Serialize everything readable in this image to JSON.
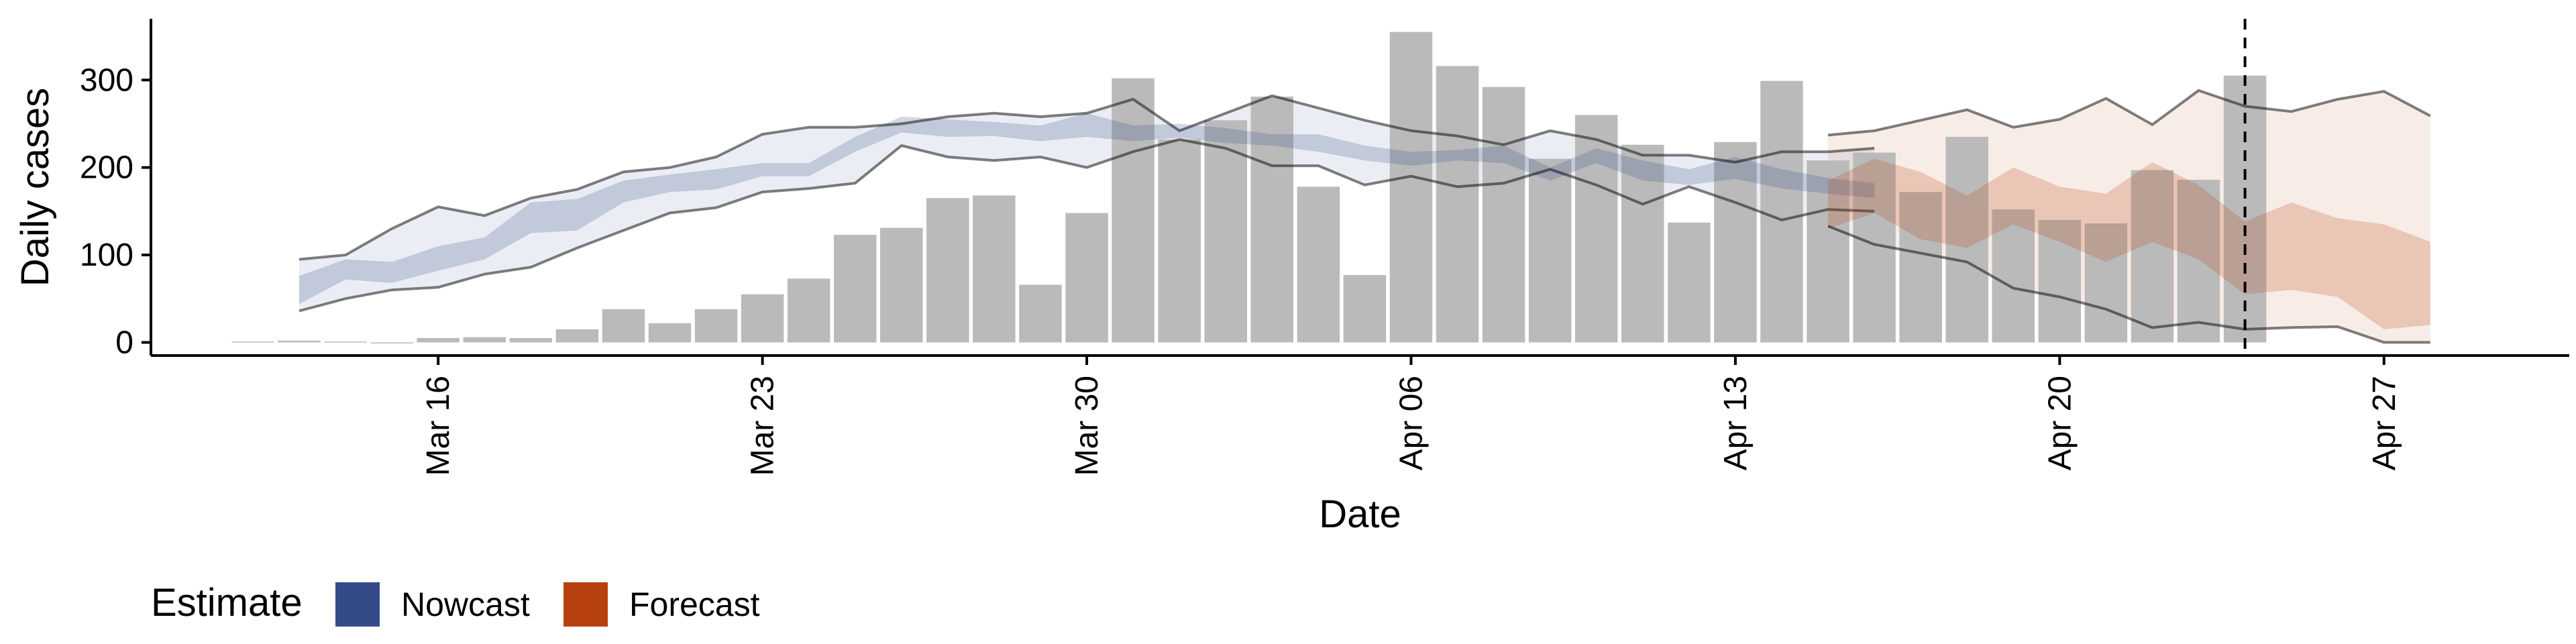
{
  "chart_data": {
    "type": "bar",
    "title": "",
    "xlabel": "Date",
    "ylabel": "Daily cases",
    "ylim": [
      -15,
      370
    ],
    "yticks": [
      0,
      100,
      200,
      300
    ],
    "x_start": "Mar 11",
    "x_end": "Apr 29",
    "xticks": [
      {
        "day": 16,
        "label": "Mar 16"
      },
      {
        "day": 23,
        "label": "Mar 23"
      },
      {
        "day": 30,
        "label": "Mar 30"
      },
      {
        "day": 37,
        "label": "Apr 06"
      },
      {
        "day": 44,
        "label": "Apr 13"
      },
      {
        "day": 51,
        "label": "Apr 20"
      },
      {
        "day": 58,
        "label": "Apr 27"
      }
    ],
    "reported_cases": {
      "start_day": 12,
      "values": [
        1,
        2,
        1,
        0,
        5,
        6,
        5,
        15,
        38,
        22,
        38,
        55,
        73,
        123,
        131,
        165,
        168,
        66,
        148,
        302,
        232,
        254,
        281,
        178,
        77,
        355,
        316,
        292,
        210,
        260,
        226,
        137,
        229,
        299,
        208,
        217,
        172,
        235,
        152,
        140,
        136,
        197,
        186,
        305
      ]
    },
    "series": [
      {
        "name": "Nowcast",
        "color": "#344B87",
        "start_day": 13,
        "lower_90": [
          36,
          50,
          60,
          63,
          78,
          86,
          108,
          128,
          148,
          154,
          172,
          176,
          182,
          225,
          212,
          208,
          212,
          200,
          218,
          232,
          222,
          202,
          202,
          180,
          190,
          178,
          182,
          198,
          180,
          158,
          178,
          160,
          140,
          152,
          150
        ],
        "upper_90": [
          95,
          100,
          130,
          155,
          145,
          165,
          175,
          195,
          200,
          212,
          238,
          246,
          246,
          250,
          258,
          262,
          258,
          262,
          278,
          242,
          262,
          282,
          268,
          254,
          242,
          236,
          226,
          242,
          232,
          214,
          214,
          206,
          218,
          218,
          222
        ],
        "lower_50": [
          44,
          72,
          68,
          82,
          95,
          125,
          128,
          160,
          172,
          175,
          190,
          190,
          218,
          240,
          235,
          236,
          230,
          235,
          230,
          234,
          228,
          225,
          218,
          208,
          202,
          208,
          205,
          185,
          205,
          185,
          180,
          187,
          176,
          170,
          165
        ],
        "upper_50": [
          76,
          95,
          92,
          110,
          120,
          160,
          164,
          185,
          192,
          198,
          205,
          205,
          235,
          258,
          255,
          252,
          248,
          262,
          248,
          250,
          245,
          238,
          238,
          225,
          218,
          220,
          225,
          200,
          222,
          208,
          198,
          212,
          198,
          188,
          182
        ]
      },
      {
        "name": "Forecast",
        "color": "#B7410E",
        "start_day": 46,
        "lower_90": [
          133,
          112,
          102,
          92,
          62,
          52,
          38,
          17,
          23,
          15,
          17,
          18,
          0,
          0
        ],
        "upper_90": [
          237,
          242,
          254,
          266,
          246,
          255,
          279,
          249,
          288,
          270,
          264,
          278,
          287,
          259
        ],
        "lower_50": [
          130,
          148,
          118,
          108,
          135,
          115,
          92,
          115,
          95,
          55,
          60,
          52,
          15,
          20
        ],
        "upper_50": [
          185,
          210,
          195,
          168,
          200,
          178,
          170,
          206,
          180,
          138,
          160,
          142,
          135,
          115
        ]
      }
    ],
    "date_line_day": 55,
    "grid": false,
    "legend": {
      "position": "bottom-left",
      "title": "Estimate",
      "entries": [
        {
          "label": "Nowcast",
          "color": "#344B87"
        },
        {
          "label": "Forecast",
          "color": "#B7410E"
        }
      ]
    }
  }
}
